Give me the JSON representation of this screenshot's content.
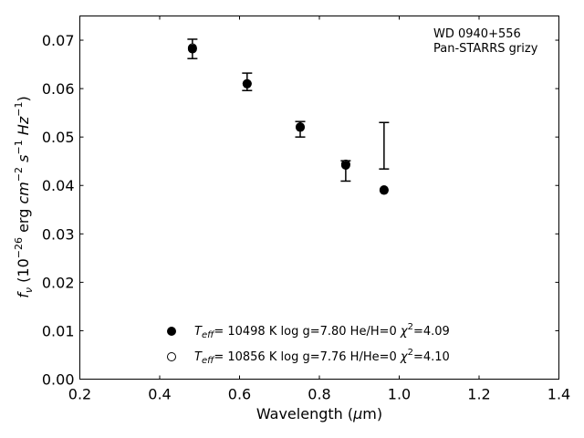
{
  "chart_data": {
    "type": "scatter",
    "title": "",
    "xlabel": "Wavelength (μm)",
    "ylabel": "f_ν (10^-26 erg cm^-2 s^-1 Hz^-1)",
    "xlim": [
      0.2,
      1.4
    ],
    "ylim": [
      0.0,
      0.075
    ],
    "xticks": [
      0.2,
      0.4,
      0.6,
      0.8,
      1.0,
      1.2,
      1.4
    ],
    "xtick_labels": [
      "0.2",
      "0.4",
      "0.6",
      "0.8",
      "1.0",
      "1.2",
      "1.4"
    ],
    "yticks": [
      0.0,
      0.01,
      0.02,
      0.03,
      0.04,
      0.05,
      0.06,
      0.07
    ],
    "ytick_labels": [
      "0.00",
      "0.01",
      "0.02",
      "0.03",
      "0.04",
      "0.05",
      "0.06",
      "0.07"
    ],
    "grid": false,
    "legend_position": "bottom-center",
    "annotation": [
      "WD 0940+556",
      "Pan-STARRS grizy"
    ],
    "observed": {
      "x": [
        0.482,
        0.619,
        0.752,
        0.866,
        0.962
      ],
      "y": [
        0.0682,
        0.0614,
        0.0516,
        0.043,
        0.0482
      ],
      "yerr": [
        0.002,
        0.0018,
        0.0016,
        0.0021,
        0.0048
      ]
    },
    "series": [
      {
        "name": "T_eff= 10498 K  log g=7.80  He/H=0  χ²=4.09",
        "marker": "filled-circle",
        "color": "#000000",
        "x": [
          0.482,
          0.619,
          0.752,
          0.866,
          0.962
        ],
        "y": [
          0.0682,
          0.061,
          0.052,
          0.0442,
          0.0391
        ]
      },
      {
        "name": "T_eff= 10856 K  log g=7.76  H/He=0  χ²=4.10",
        "marker": "open-circle",
        "color": "#000000",
        "x": [
          0.482,
          0.619,
          0.752,
          0.866,
          0.962
        ],
        "y": [
          0.0684,
          0.061,
          0.0521,
          0.0444,
          0.039
        ]
      }
    ]
  }
}
